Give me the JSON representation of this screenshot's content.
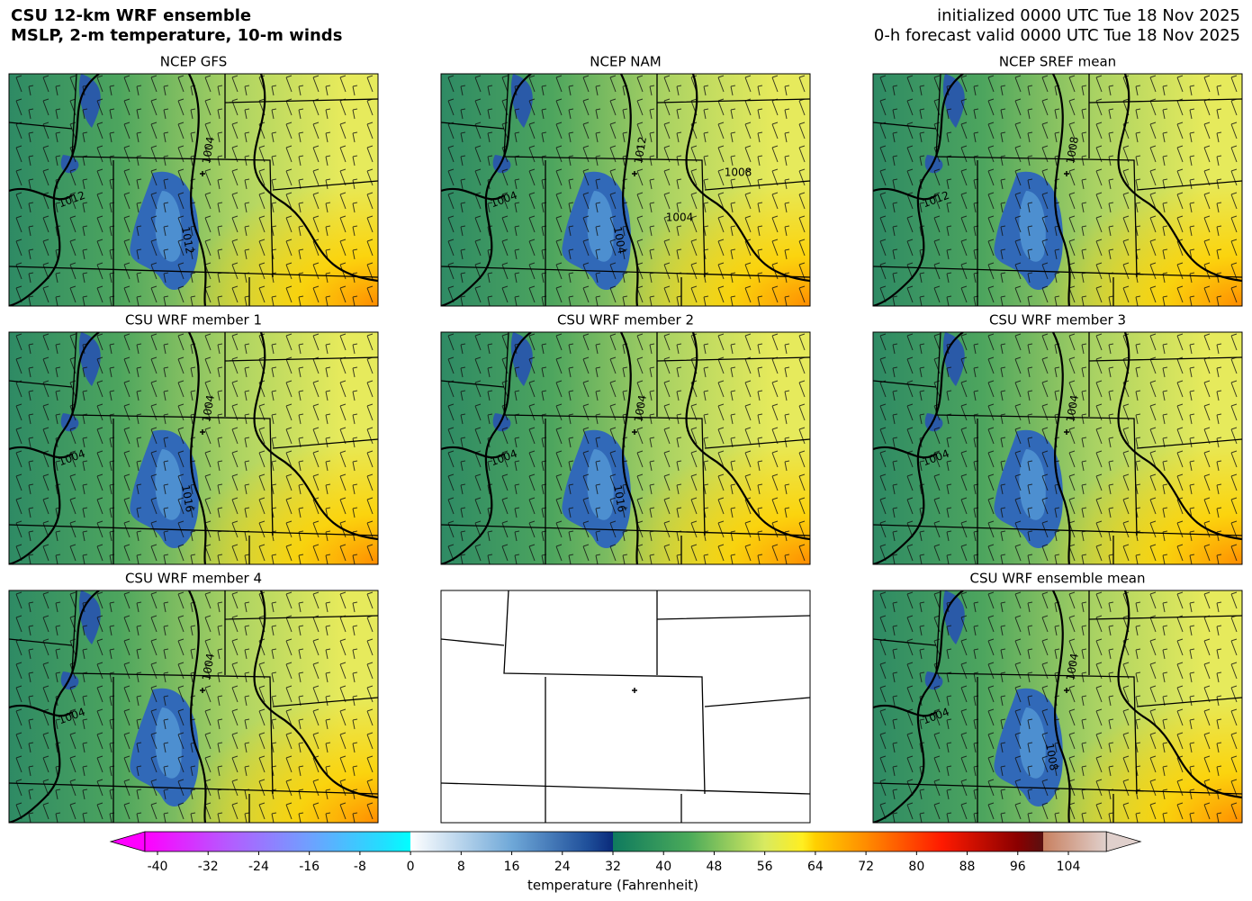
{
  "header": {
    "title": [
      "CSU 12-km WRF ensemble",
      "MSLP, 2-m temperature, 10-m winds"
    ],
    "info": [
      "initialized 0000 UTC Tue 18 Nov 2025",
      "0-h forecast valid 0000 UTC Tue 18 Nov 2025"
    ]
  },
  "panels": [
    {
      "title": "NCEP GFS",
      "contour_labels": [
        "1004",
        "1012",
        "1012"
      ]
    },
    {
      "title": "NCEP NAM",
      "contour_labels": [
        "1012",
        "1004",
        "1004",
        "1008",
        "1004"
      ]
    },
    {
      "title": "NCEP SREF mean",
      "contour_labels": [
        "1008",
        "1012"
      ]
    },
    {
      "title": "CSU WRF member 1",
      "contour_labels": [
        "1004",
        "1004",
        "1016"
      ]
    },
    {
      "title": "CSU WRF member 2",
      "contour_labels": [
        "1004",
        "1004",
        "1016"
      ]
    },
    {
      "title": "CSU WRF member 3",
      "contour_labels": [
        "1004",
        "1004"
      ]
    },
    {
      "title": "CSU WRF member 4",
      "contour_labels": [
        "1004",
        "1004"
      ]
    },
    {
      "title": "CSU WRF ensemble mean",
      "contour_labels": [
        "1004",
        "1004",
        "1008"
      ]
    }
  ],
  "colorbar": {
    "label": "temperature (Fahrenheit)",
    "lim": [
      -42,
      110
    ],
    "ticks": [
      -40,
      -32,
      -24,
      -16,
      -8,
      0,
      8,
      16,
      24,
      32,
      40,
      48,
      56,
      64,
      72,
      80,
      88,
      96,
      104
    ],
    "colormap": [
      {
        "value": -42,
        "color": "#ff00ff"
      },
      {
        "value": -28,
        "color": "#b060ff"
      },
      {
        "value": -16,
        "color": "#6fa0ff"
      },
      {
        "value": -4,
        "color": "#20e0ff"
      },
      {
        "value": 0,
        "color": "#00ffff"
      },
      {
        "value": 0,
        "color": "#ffffff"
      },
      {
        "value": 16,
        "color": "#6fa8d8"
      },
      {
        "value": 28,
        "color": "#1f4f9a"
      },
      {
        "value": 32,
        "color": "#0a2a7a"
      },
      {
        "value": 32,
        "color": "#0f7a5e"
      },
      {
        "value": 44,
        "color": "#4aaa5a"
      },
      {
        "value": 56,
        "color": "#d8ea60"
      },
      {
        "value": 62,
        "color": "#ffee20"
      },
      {
        "value": 64,
        "color": "#ffd000"
      },
      {
        "value": 72,
        "color": "#ff8c00"
      },
      {
        "value": 84,
        "color": "#ff1a00"
      },
      {
        "value": 96,
        "color": "#8a0000"
      },
      {
        "value": 100,
        "color": "#5a1010"
      },
      {
        "value": 100,
        "color": "#c88060"
      },
      {
        "value": 110,
        "color": "#e0d0cc"
      }
    ]
  }
}
